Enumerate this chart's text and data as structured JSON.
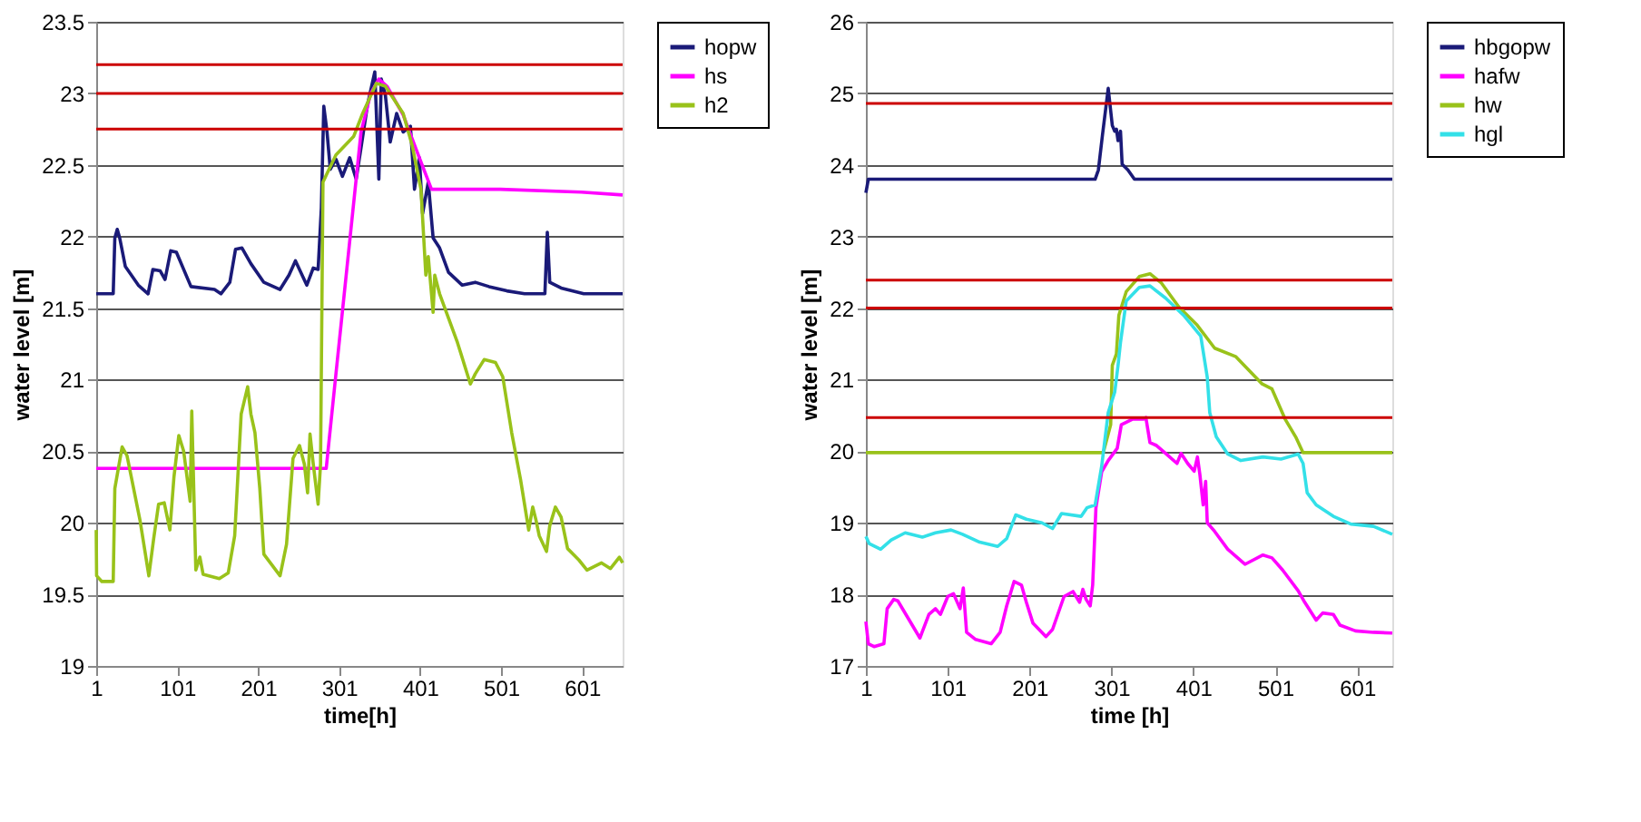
{
  "chart_data": [
    {
      "type": "line",
      "xlabel": "time[h]",
      "ylabel": "water level [m]",
      "xlim": [
        1,
        651
      ],
      "xticks": [
        1,
        101,
        201,
        301,
        401,
        501,
        601
      ],
      "ylim": [
        19,
        23.5
      ],
      "yticks": [
        19,
        19.5,
        20,
        20.5,
        21,
        21.5,
        22,
        22.5,
        23,
        23.5
      ],
      "grid": "y",
      "legend": "top right",
      "marker": "none",
      "line_style": "solid",
      "ref_lines": [
        {
          "axis": "y",
          "value": 23.2,
          "color": "#cc0000"
        },
        {
          "axis": "y",
          "value": 23.0,
          "color": "#cc0000"
        },
        {
          "axis": "y",
          "value": 22.75,
          "color": "#cc0000"
        }
      ],
      "series": [
        {
          "name": "hopw",
          "color": "#1a1a78",
          "x": [
            1,
            22,
            24,
            27,
            30,
            37,
            53,
            65,
            71,
            80,
            86,
            93,
            100,
            118,
            147,
            155,
            166,
            173,
            181,
            192,
            208,
            228,
            239,
            247,
            261,
            269,
            275,
            279,
            282,
            286,
            290,
            297,
            305,
            314,
            322,
            328,
            336,
            345,
            350,
            353,
            358,
            364,
            372,
            380,
            389,
            394,
            400,
            404,
            411,
            417,
            425,
            436,
            453,
            469,
            486,
            508,
            530,
            555,
            558,
            561,
            575,
            603,
            651
          ],
          "values": [
            21.6,
            21.6,
            21.99,
            22.05,
            21.99,
            21.79,
            21.66,
            21.6,
            21.77,
            21.76,
            21.7,
            21.9,
            21.89,
            21.65,
            21.63,
            21.6,
            21.68,
            21.91,
            21.92,
            21.81,
            21.68,
            21.63,
            21.73,
            21.83,
            21.66,
            21.78,
            21.77,
            22.2,
            22.91,
            22.73,
            22.47,
            22.54,
            22.42,
            22.55,
            22.4,
            22.62,
            22.92,
            23.15,
            22.4,
            23.1,
            22.99,
            22.66,
            22.86,
            22.73,
            22.77,
            22.33,
            22.55,
            22.16,
            22.38,
            21.99,
            21.92,
            21.75,
            21.66,
            21.68,
            21.65,
            21.62,
            21.6,
            21.6,
            22.03,
            21.68,
            21.64,
            21.6,
            21.6
          ]
        },
        {
          "name": "hs",
          "color": "#ff00ff",
          "x": [
            1,
            285,
            297,
            328,
            340,
            350,
            360,
            380,
            400,
            415,
            500,
            600,
            651
          ],
          "values": [
            20.38,
            20.38,
            21.04,
            22.73,
            23.0,
            23.1,
            23.05,
            22.85,
            22.55,
            22.33,
            22.33,
            22.31,
            22.29
          ]
        },
        {
          "name": "h2",
          "color": "#99c21a",
          "x": [
            1,
            1.5,
            8,
            22,
            24,
            33,
            39,
            55,
            66,
            72,
            78,
            85,
            92,
            97,
            103,
            109,
            117,
            119,
            124,
            129,
            133,
            153,
            164,
            172,
            180,
            188,
            192,
            197,
            203,
            208,
            228,
            236,
            244,
            252,
            258,
            262,
            265,
            269,
            275,
            278,
            281,
            286,
            297,
            319,
            330,
            347,
            358,
            380,
            391,
            402,
            408,
            411,
            417,
            419,
            425,
            447,
            463,
            469,
            480,
            494,
            503,
            514,
            525,
            535,
            540,
            544,
            548,
            557,
            561,
            568,
            575,
            583,
            597,
            607,
            625,
            636,
            647,
            651
          ],
          "values": [
            19.95,
            19.63,
            19.59,
            19.59,
            20.24,
            20.53,
            20.47,
            20.02,
            19.63,
            19.89,
            20.13,
            20.14,
            19.95,
            20.32,
            20.61,
            20.5,
            20.15,
            20.78,
            19.67,
            19.76,
            19.64,
            19.61,
            19.65,
            19.91,
            20.76,
            20.95,
            20.76,
            20.63,
            20.24,
            19.78,
            19.63,
            19.85,
            20.45,
            20.54,
            20.41,
            20.21,
            20.62,
            20.41,
            20.13,
            20.41,
            22.38,
            22.44,
            22.57,
            22.7,
            22.86,
            23.07,
            23.05,
            22.86,
            22.64,
            22.33,
            21.73,
            21.86,
            21.47,
            21.73,
            21.6,
            21.26,
            20.97,
            21.04,
            21.14,
            21.12,
            21.02,
            20.63,
            20.3,
            19.95,
            20.11,
            20.02,
            19.91,
            19.8,
            19.98,
            20.11,
            20.04,
            19.82,
            19.74,
            19.67,
            19.72,
            19.68,
            19.76,
            19.72
          ]
        }
      ]
    },
    {
      "type": "line",
      "xlabel": "time [h]",
      "ylabel": "water level [m]",
      "xlim": [
        1,
        644
      ],
      "xticks": [
        1,
        101,
        201,
        301,
        401,
        501,
        601
      ],
      "ylim": [
        17,
        26
      ],
      "yticks": [
        17,
        18,
        19,
        20,
        21,
        22,
        23,
        24,
        25,
        26
      ],
      "grid": "y",
      "legend": "top right",
      "marker": "none",
      "line_style": "solid",
      "ref_lines": [
        {
          "axis": "y",
          "value": 24.86,
          "color": "#cc0000"
        },
        {
          "axis": "y",
          "value": 22.39,
          "color": "#cc0000"
        },
        {
          "axis": "y",
          "value": 22.0,
          "color": "#cc0000"
        },
        {
          "axis": "y",
          "value": 20.47,
          "color": "#cc0000"
        }
      ],
      "series": [
        {
          "name": "hbgopw",
          "color": "#1a1a78",
          "x": [
            1,
            4,
            270,
            281,
            285,
            290,
            297,
            302,
            305,
            307,
            309,
            312,
            314,
            321,
            329,
            644
          ],
          "values": [
            23.61,
            23.8,
            23.8,
            23.8,
            23.93,
            24.42,
            25.07,
            24.55,
            24.47,
            24.5,
            24.34,
            24.47,
            24.01,
            23.93,
            23.8,
            23.8
          ]
        },
        {
          "name": "hafw",
          "color": "#ff00ff",
          "x": [
            1,
            4,
            11,
            23,
            27,
            35,
            40,
            54,
            67,
            78,
            86,
            92,
            101,
            108,
            116,
            120,
            124,
            135,
            154,
            165,
            173,
            182,
            191,
            197,
            205,
            221,
            229,
            243,
            254,
            262,
            266,
            270,
            275,
            278,
            282,
            289,
            297,
            308,
            313,
            327,
            340,
            343,
            348,
            356,
            367,
            381,
            386,
            394,
            402,
            406,
            409,
            413,
            416,
            418,
            427,
            443,
            464,
            486,
            497,
            510,
            529,
            537,
            551,
            559,
            572,
            580,
            599,
            621,
            644
          ],
          "values": [
            17.62,
            17.31,
            17.27,
            17.31,
            17.8,
            17.93,
            17.91,
            17.64,
            17.39,
            17.72,
            17.8,
            17.72,
            17.97,
            18.01,
            17.8,
            18.09,
            17.47,
            17.37,
            17.31,
            17.47,
            17.84,
            18.18,
            18.13,
            17.89,
            17.6,
            17.41,
            17.51,
            17.97,
            18.04,
            17.89,
            18.07,
            17.93,
            17.84,
            18.13,
            19.21,
            19.71,
            19.87,
            20.04,
            20.37,
            20.45,
            20.45,
            20.47,
            20.12,
            20.08,
            19.97,
            19.83,
            19.97,
            19.83,
            19.72,
            19.92,
            19.67,
            19.25,
            19.58,
            19.0,
            18.88,
            18.63,
            18.42,
            18.55,
            18.51,
            18.34,
            18.05,
            17.89,
            17.64,
            17.74,
            17.72,
            17.57,
            17.49,
            17.47,
            17.46
          ]
        },
        {
          "name": "hw",
          "color": "#99c21a",
          "x": [
            1,
            291,
            300,
            302,
            307,
            310,
            319,
            335,
            348,
            362,
            383,
            405,
            427,
            453,
            485,
            497,
            513,
            526,
            535,
            644
          ],
          "values": [
            19.98,
            19.98,
            20.37,
            21.2,
            21.36,
            21.9,
            22.23,
            22.44,
            22.48,
            22.35,
            22.02,
            21.77,
            21.44,
            21.32,
            20.94,
            20.87,
            20.45,
            20.2,
            19.98,
            19.98
          ]
        },
        {
          "name": "hgl",
          "color": "#33e0e8",
          "x": [
            1,
            5,
            19,
            32,
            49,
            70,
            86,
            105,
            119,
            140,
            162,
            173,
            184,
            197,
            216,
            229,
            240,
            264,
            271,
            281,
            289,
            297,
            305,
            309,
            312,
            319,
            335,
            348,
            367,
            389,
            410,
            418,
            421,
            429,
            443,
            459,
            486,
            508,
            529,
            535,
            540,
            551,
            572,
            594,
            621,
            644
          ],
          "values": [
            18.81,
            18.71,
            18.63,
            18.76,
            18.86,
            18.8,
            18.86,
            18.9,
            18.84,
            18.73,
            18.67,
            18.78,
            19.11,
            19.05,
            19.0,
            18.92,
            19.13,
            19.09,
            19.21,
            19.25,
            19.79,
            20.54,
            20.83,
            21.2,
            21.52,
            22.1,
            22.29,
            22.31,
            22.14,
            21.9,
            21.61,
            21.03,
            20.54,
            20.2,
            19.96,
            19.87,
            19.92,
            19.89,
            19.96,
            19.83,
            19.42,
            19.25,
            19.09,
            18.98,
            18.95,
            18.84
          ]
        }
      ]
    }
  ]
}
